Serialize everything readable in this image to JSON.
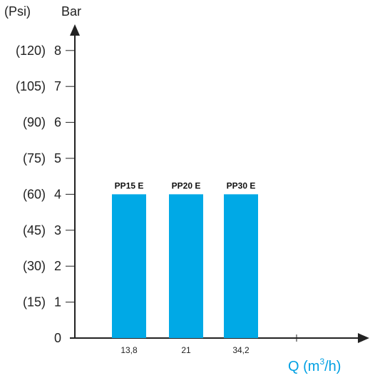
{
  "chart_data": {
    "type": "bar",
    "categories": [
      "13,8",
      "21",
      "34,2"
    ],
    "values": [
      4,
      4,
      4
    ],
    "bar_labels": [
      "PP15 E",
      "PP20 E",
      "PP30 E"
    ],
    "ylabel": "Bar",
    "ylabel_secondary": "(Psi)",
    "yticks": [
      "0",
      "1",
      "2",
      "3",
      "4",
      "5",
      "6",
      "7",
      "8"
    ],
    "yticks_secondary": [
      "(15)",
      "(30)",
      "(45)",
      "(60)",
      "(75)",
      "(90)",
      "(105)",
      "(120)"
    ],
    "xlabel": {
      "prefix": "Q (m",
      "sup": "3",
      "suffix": "/h)"
    },
    "ylim": [
      0,
      8
    ],
    "grid": false,
    "legend": "none",
    "colors": {
      "bar": "#00a9e6",
      "axis": "#222222",
      "xlabel": "#00a0e3"
    }
  }
}
